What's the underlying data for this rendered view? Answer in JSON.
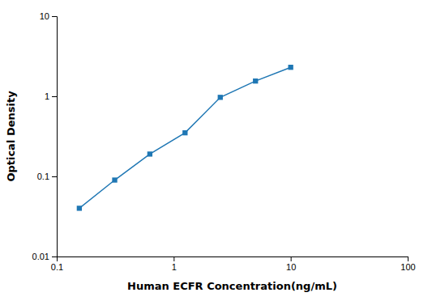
{
  "chart_data": {
    "type": "line",
    "x": [
      0.156,
      0.313,
      0.625,
      1.25,
      2.5,
      5.0,
      10.0
    ],
    "values": [
      0.04,
      0.09,
      0.19,
      0.35,
      0.97,
      1.55,
      2.3
    ],
    "xlabel": "Human ECFR Concentration(ng/mL)",
    "ylabel": "Optical Density",
    "xlim": [
      0.1,
      100
    ],
    "ylim": [
      0.01,
      10
    ],
    "xticks": [
      0.1,
      1,
      10,
      100
    ],
    "yticks": [
      0.01,
      0.1,
      1,
      10
    ],
    "log": true,
    "grid": false,
    "marker": "square",
    "line_style": "solid"
  }
}
